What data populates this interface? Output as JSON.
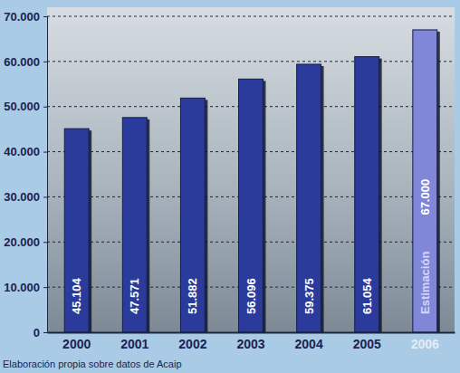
{
  "chart_data": {
    "type": "bar",
    "categories": [
      "2000",
      "2001",
      "2002",
      "2003",
      "2004",
      "2005",
      "2006"
    ],
    "values": [
      45104,
      47571,
      51882,
      56096,
      59375,
      61054,
      67000
    ],
    "value_labels": [
      "45.104",
      "47.571",
      "51.882",
      "56.096",
      "59.375",
      "61.054",
      "67.000"
    ],
    "colors": [
      "#2b3b9c",
      "#2b3b9c",
      "#2b3b9c",
      "#2b3b9c",
      "#2b3b9c",
      "#2b3b9c",
      "#8087d8"
    ],
    "ylim": [
      0,
      70000
    ],
    "yticks": [
      {
        "value": 0,
        "label": "0"
      },
      {
        "value": 10000,
        "label": "10.000"
      },
      {
        "value": 20000,
        "label": "20.000"
      },
      {
        "value": 30000,
        "label": "30.000"
      },
      {
        "value": 40000,
        "label": "40.000"
      },
      {
        "value": 50000,
        "label": "50.000"
      },
      {
        "value": 60000,
        "label": "60.000"
      },
      {
        "value": 70000,
        "label": "70.000"
      }
    ],
    "grid": true,
    "data_labels": true,
    "annotations": [
      {
        "text": "Estimación",
        "x": "2006"
      }
    ],
    "source": "Elaboración propia sobre datos de Acaip"
  }
}
